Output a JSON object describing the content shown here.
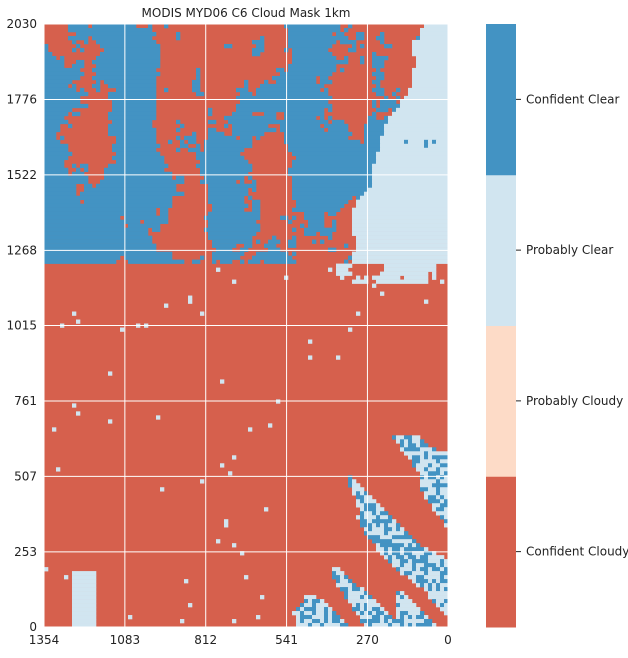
{
  "chart_data": {
    "type": "heatmap",
    "title": "MODIS MYD06 C6 Cloud Mask 1km",
    "xlabel": "",
    "ylabel": "",
    "x_ticks": [
      "1354",
      "1083",
      "812",
      "541",
      "270",
      "0"
    ],
    "y_ticks": [
      "0",
      "253",
      "507",
      "761",
      "1015",
      "1268",
      "1522",
      "1776",
      "2030"
    ],
    "xlim": [
      1354,
      0
    ],
    "ylim": [
      0,
      2030
    ],
    "x_reversed": true,
    "grid": true,
    "grid_color": "#ffffff",
    "colorbar": {
      "position": "right",
      "categories": [
        {
          "label": "Confident Cloudy",
          "color": "#d6604d"
        },
        {
          "label": "Probably Cloudy",
          "color": "#fddbc7"
        },
        {
          "label": "Probably Clear",
          "color": "#d1e5f0"
        },
        {
          "label": "Confident Clear",
          "color": "#4393c3"
        }
      ]
    }
  }
}
